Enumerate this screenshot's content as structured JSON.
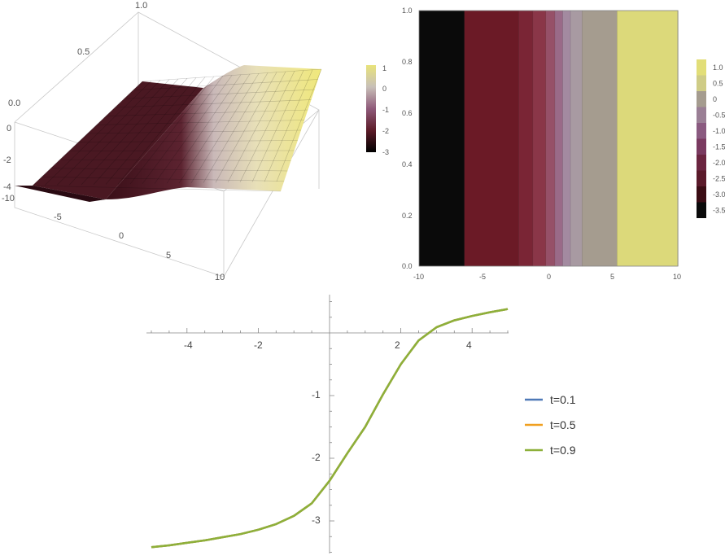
{
  "colors": {
    "dark": "#0a0a0a",
    "maroon": "#6b1a26",
    "mauve": "#8f5a7a",
    "gray": "#a59c8f",
    "yellow": "#dcd97a",
    "series_t01": "#4e79b7",
    "series_t05": "#f0a020",
    "series_t09": "#8db03a"
  },
  "chart_data": [
    {
      "type": "surface",
      "x_ticks": [
        "-10",
        "-5",
        "0",
        "5",
        "10"
      ],
      "z_ticks": [
        "-4",
        "-2",
        "0"
      ],
      "t_ticks": [
        "0.0",
        "0.5",
        "1.0"
      ],
      "colorbar_ticks": [
        "1",
        "0",
        "-1",
        "-2",
        "-3"
      ],
      "x_range": [
        -10,
        10
      ],
      "t_range": [
        0,
        1
      ],
      "z_range": [
        -4,
        1
      ]
    },
    {
      "type": "heatmap",
      "x_ticks": [
        "-10",
        "-5",
        "0",
        "5",
        "10"
      ],
      "y_ticks": [
        "0.0",
        "0.2",
        "0.4",
        "0.6",
        "0.8",
        "1.0"
      ],
      "x_range": [
        -10,
        10
      ],
      "y_range": [
        0,
        1
      ],
      "bands": [
        {
          "x0": -10,
          "x1": -6.5,
          "color": "#0a0a0a"
        },
        {
          "x0": -6.5,
          "x1": -2.3,
          "color": "#6b1a26"
        },
        {
          "x0": -2.3,
          "x1": -1.2,
          "color": "#7a2535"
        },
        {
          "x0": -1.2,
          "x1": -0.2,
          "color": "#8a3648"
        },
        {
          "x0": -0.2,
          "x1": 0.5,
          "color": "#965068"
        },
        {
          "x0": 0.5,
          "x1": 1.1,
          "color": "#9a6a88"
        },
        {
          "x0": 1.1,
          "x1": 1.7,
          "color": "#a38aa0"
        },
        {
          "x0": 1.7,
          "x1": 2.6,
          "color": "#a89aa2"
        },
        {
          "x0": 2.6,
          "x1": 5.3,
          "color": "#a59c8f"
        },
        {
          "x0": 5.3,
          "x1": 10,
          "color": "#dcd97a"
        }
      ],
      "colorbar_ticks": [
        "1.0",
        "0.5",
        "0",
        "-0.5",
        "-1.0",
        "-1.5",
        "-2.0",
        "-2.5",
        "-3.0",
        "-3.5"
      ]
    },
    {
      "type": "line",
      "x_range": [
        -5,
        5
      ],
      "y_range": [
        -3.6,
        0.6
      ],
      "x_ticks": [
        "-4",
        "-2",
        "2",
        "4"
      ],
      "y_ticks": [
        "-1",
        "-2",
        "-3"
      ],
      "x": [
        -5,
        -4.5,
        -4,
        -3.5,
        -3,
        -2.5,
        -2,
        -1.5,
        -1,
        -0.5,
        0,
        0.5,
        1,
        1.5,
        2,
        2.5,
        3,
        3.5,
        4,
        4.5,
        5
      ],
      "series": [
        {
          "name": "t=0.1",
          "color": "#4e79b7",
          "values": [
            -3.42,
            -3.39,
            -3.35,
            -3.31,
            -3.26,
            -3.21,
            -3.14,
            -3.05,
            -2.92,
            -2.72,
            -2.36,
            -1.92,
            -1.5,
            -0.98,
            -0.5,
            -0.12,
            0.09,
            0.2,
            0.27,
            0.33,
            0.38
          ]
        },
        {
          "name": "t=0.5",
          "color": "#f0a020",
          "values": [
            -3.42,
            -3.39,
            -3.35,
            -3.31,
            -3.26,
            -3.21,
            -3.14,
            -3.05,
            -2.92,
            -2.72,
            -2.36,
            -1.92,
            -1.5,
            -0.98,
            -0.5,
            -0.12,
            0.09,
            0.2,
            0.27,
            0.33,
            0.38
          ]
        },
        {
          "name": "t=0.9",
          "color": "#8db03a",
          "values": [
            -3.42,
            -3.39,
            -3.35,
            -3.31,
            -3.26,
            -3.21,
            -3.14,
            -3.05,
            -2.92,
            -2.72,
            -2.36,
            -1.92,
            -1.5,
            -0.98,
            -0.5,
            -0.12,
            0.09,
            0.2,
            0.27,
            0.33,
            0.38
          ]
        }
      ]
    }
  ]
}
